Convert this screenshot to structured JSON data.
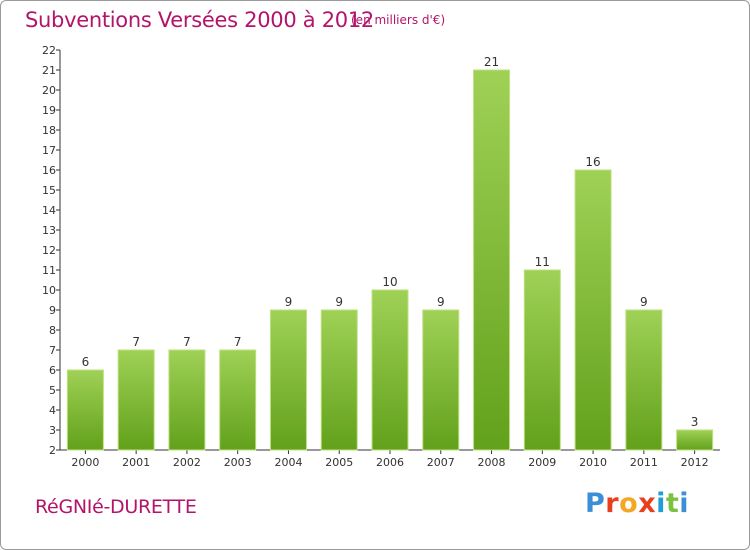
{
  "header": {
    "title": "Subventions Versées 2000 à 2012",
    "subtitle": "(en milliers d'€)"
  },
  "footer": {
    "commune": "RéGNIé-DURETTE",
    "logo": "Proxiti",
    "logo_colors": [
      "#3a8fd6",
      "#e8401c",
      "#f5a623",
      "#e8401c",
      "#1f9fd6",
      "#7cc242",
      "#3a8fd6"
    ]
  },
  "colors": {
    "bar_top": "#9fd156",
    "bar_bottom": "#62a11b",
    "axis": "#333333",
    "grid": "#e6e6e6",
    "title": "#b3146a"
  },
  "chart_data": {
    "type": "bar",
    "title": "Subventions Versées 2000 à 2012",
    "subtitle": "(en milliers d'€)",
    "xlabel": "",
    "ylabel": "",
    "categories": [
      "2000",
      "2001",
      "2002",
      "2003",
      "2004",
      "2005",
      "2006",
      "2007",
      "2008",
      "2009",
      "2010",
      "2011",
      "2012"
    ],
    "values": [
      6,
      7,
      7,
      7,
      9,
      9,
      10,
      9,
      21,
      11,
      16,
      9,
      3
    ],
    "ylim": [
      2,
      22
    ],
    "yticks": [
      2,
      3,
      4,
      5,
      6,
      7,
      8,
      9,
      10,
      11,
      12,
      13,
      14,
      15,
      16,
      17,
      18,
      19,
      20,
      21,
      22
    ],
    "grid": false,
    "legend": "none"
  }
}
